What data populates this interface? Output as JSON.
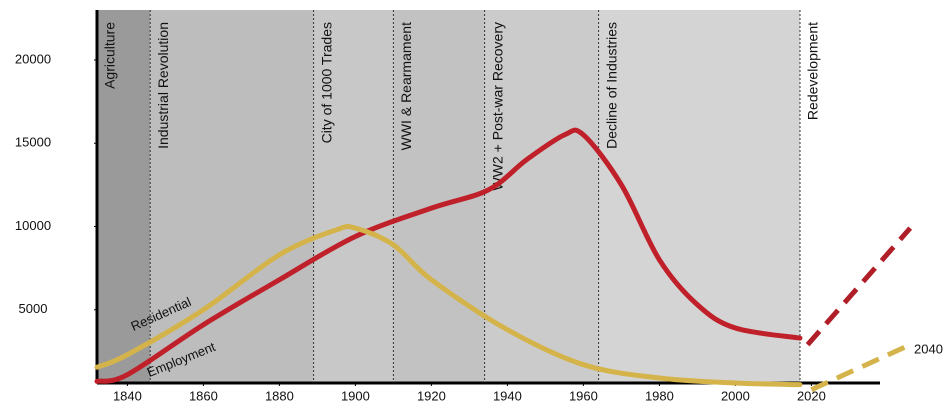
{
  "chart_data": {
    "type": "line",
    "eras": [
      {
        "label": "Agriculture",
        "start": 1832,
        "end": 1846,
        "color": "#9a9a9a"
      },
      {
        "label": "Industrial Revolution",
        "start": 1846,
        "end": 1889,
        "color": "#bdbdbd"
      },
      {
        "label": "City of 1000 Trades",
        "start": 1889,
        "end": 1910,
        "color": "#c8c8c8"
      },
      {
        "label": "WWI & Rearmament",
        "start": 1910,
        "end": 1934,
        "color": "#c2c2c2"
      },
      {
        "label": "WW2 + Post-war Recovery",
        "start": 1934,
        "end": 1964,
        "color": "#cbcbcb"
      },
      {
        "label": "Decline of Industries",
        "start": 1964,
        "end": 2017,
        "color": "#d4d4d4"
      },
      {
        "label": "Redevelopment",
        "start": 2017,
        "end": 2047,
        "color": "#ffffff"
      }
    ],
    "series": [
      {
        "name": "Residential",
        "color": "#c0202a",
        "x": [
          1832,
          1840,
          1860,
          1880,
          1900,
          1920,
          1935,
          1945,
          1955,
          1960,
          1970,
          1980,
          1990,
          2000,
          2017
        ],
        "values": [
          700,
          1100,
          4100,
          6800,
          9400,
          11100,
          12200,
          14000,
          15500,
          15500,
          12500,
          8000,
          5300,
          3900,
          3300
        ]
      },
      {
        "name": "Employment",
        "color": "#d4b44a",
        "x": [
          1832,
          1840,
          1860,
          1880,
          1895,
          1900,
          1910,
          1920,
          1940,
          1960,
          1980,
          2000,
          2017
        ],
        "values": [
          1550,
          2300,
          5000,
          8300,
          9800,
          9900,
          8900,
          6800,
          3800,
          1700,
          900,
          600,
          500
        ]
      }
    ],
    "projections": [
      {
        "color": "#b01e28",
        "x": [
          2019,
          2046
        ],
        "values": [
          2900,
          9900
        ]
      },
      {
        "color": "#d4b44a",
        "x": [
          2020,
          2046
        ],
        "values": [
          200,
          2900
        ]
      }
    ],
    "annotation": "2040",
    "xlim": [
      1832,
      2047
    ],
    "ylim": [
      0,
      23000
    ],
    "xticks": [
      1840,
      1860,
      1880,
      1900,
      1920,
      1940,
      1960,
      1980,
      2000,
      2020
    ],
    "yticks": [
      5000,
      10000,
      15000,
      20000
    ]
  }
}
